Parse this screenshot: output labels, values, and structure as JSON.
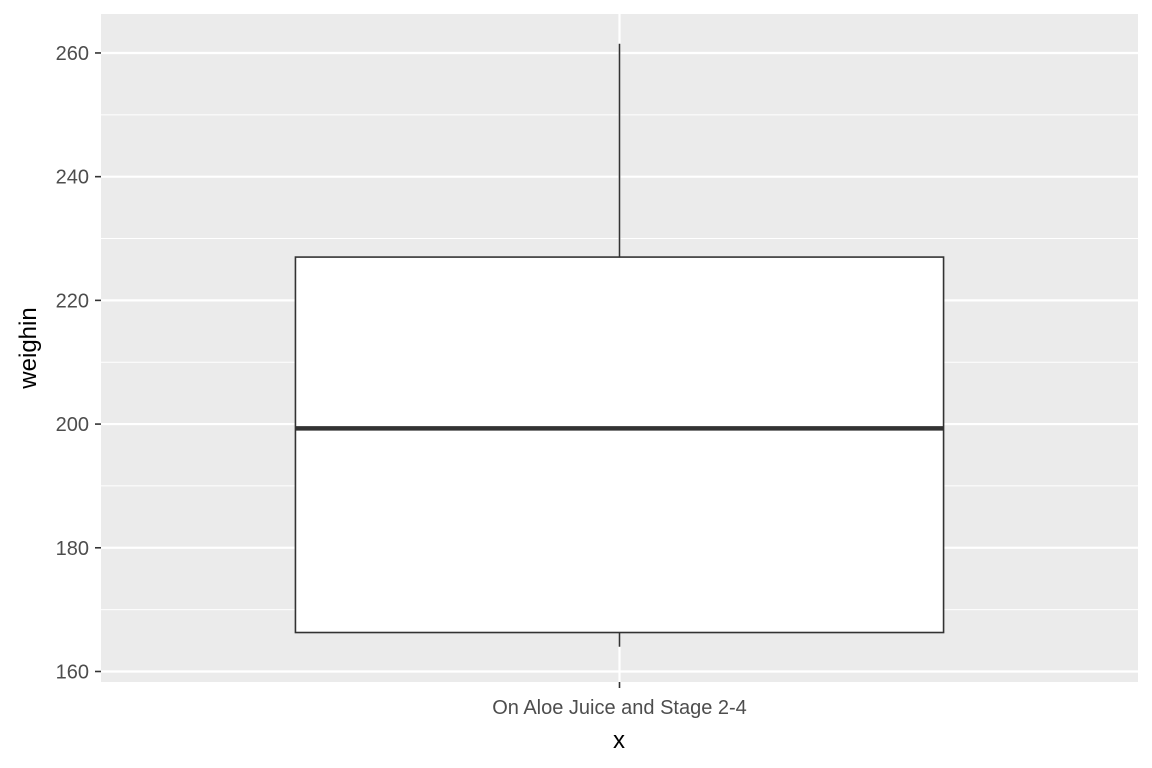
{
  "chart_data": {
    "type": "box",
    "title": "",
    "xlabel": "x",
    "ylabel": "weighin",
    "categories": [
      "On Aloe Juice and Stage 2-4"
    ],
    "boxes": [
      {
        "category": "On Aloe Juice and Stage 2-4",
        "whisker_low": 164,
        "q1": 166.3,
        "median": 199.3,
        "q3": 227,
        "whisker_high": 261.5
      }
    ],
    "ylim": [
      158.3,
      266.3
    ],
    "yticks": [
      160,
      180,
      200,
      220,
      240,
      260
    ],
    "ytick_labels": [
      "160",
      "180",
      "200",
      "220",
      "240",
      "260"
    ],
    "grid": true,
    "legend": "none",
    "colors": {
      "panel": "#ebebeb",
      "grid": "#ffffff",
      "box_fill": "#ffffff",
      "box_line": "#333333",
      "tick_text": "#4d4d4d",
      "tick_mark": "#333333"
    }
  }
}
